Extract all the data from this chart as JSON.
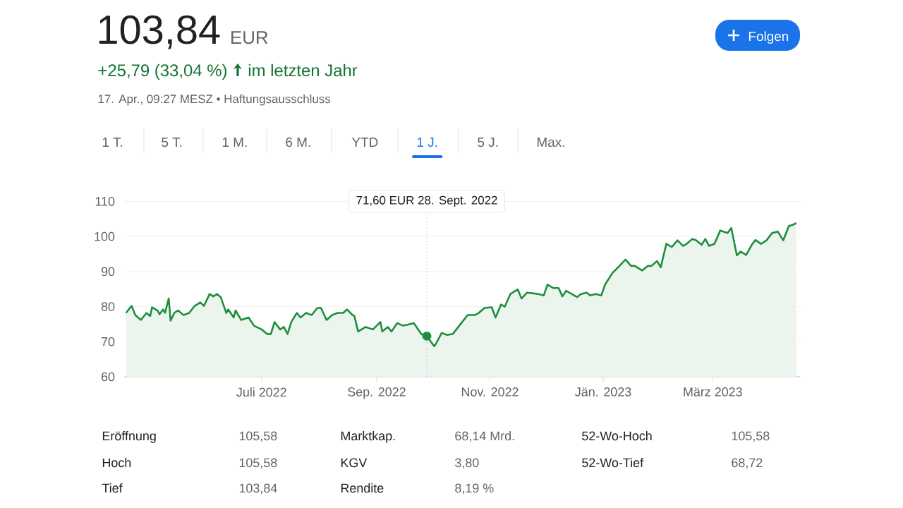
{
  "chart_data": {
    "type": "area",
    "title": "103,84",
    "x": [
      "2022-04-19",
      "2022-04-22",
      "2022-04-24",
      "2022-04-27",
      "2022-04-30",
      "2022-05-02",
      "2022-05-03",
      "2022-05-06",
      "2022-05-07",
      "2022-05-09",
      "2022-05-10",
      "2022-05-12",
      "2022-05-13",
      "2022-05-15",
      "2022-05-17",
      "2022-05-20",
      "2022-05-23",
      "2022-05-26",
      "2022-05-29",
      "2022-05-31",
      "2022-06-03",
      "2022-06-05",
      "2022-06-07",
      "2022-06-09",
      "2022-06-12",
      "2022-06-13",
      "2022-06-16",
      "2022-06-17",
      "2022-06-20",
      "2022-06-24",
      "2022-06-27",
      "2022-07-01",
      "2022-07-04",
      "2022-07-06",
      "2022-07-08",
      "2022-07-11",
      "2022-07-13",
      "2022-07-15",
      "2022-07-17",
      "2022-07-20",
      "2022-07-22",
      "2022-07-25",
      "2022-07-28",
      "2022-07-31",
      "2022-08-02",
      "2022-08-05",
      "2022-08-08",
      "2022-08-11",
      "2022-08-14",
      "2022-08-16",
      "2022-08-19",
      "2022-08-20",
      "2022-08-22",
      "2022-08-26",
      "2022-08-30",
      "2022-09-03",
      "2022-09-04",
      "2022-09-07",
      "2022-09-09",
      "2022-09-12",
      "2022-09-15",
      "2022-09-18",
      "2022-09-21",
      "2022-09-25",
      "2022-09-26",
      "2022-09-28",
      "2022-10-02",
      "2022-10-03",
      "2022-10-06",
      "2022-10-09",
      "2022-10-12",
      "2022-10-16",
      "2022-10-20",
      "2022-10-24",
      "2022-10-26",
      "2022-10-29",
      "2022-11-02",
      "2022-11-04",
      "2022-11-07",
      "2022-11-09",
      "2022-11-12",
      "2022-11-16",
      "2022-11-18",
      "2022-11-21",
      "2022-11-27",
      "2022-11-30",
      "2022-12-02",
      "2022-12-05",
      "2022-12-08",
      "2022-12-10",
      "2022-12-12",
      "2022-12-18",
      "2022-12-20",
      "2022-12-23",
      "2022-12-25",
      "2022-12-28",
      "2022-12-31",
      "2023-01-02",
      "2023-01-06",
      "2023-01-09",
      "2023-01-13",
      "2023-01-16",
      "2023-01-18",
      "2023-01-22",
      "2023-01-25",
      "2023-01-27",
      "2023-01-30",
      "2023-02-01",
      "2023-02-04",
      "2023-02-07",
      "2023-02-10",
      "2023-02-13",
      "2023-02-15",
      "2023-02-18",
      "2023-02-20",
      "2023-02-23",
      "2023-02-25",
      "2023-02-27",
      "2023-03-02",
      "2023-03-05",
      "2023-03-09",
      "2023-03-11",
      "2023-03-14",
      "2023-03-16",
      "2023-03-19",
      "2023-03-22",
      "2023-03-24",
      "2023-03-27",
      "2023-03-30",
      "2023-04-02",
      "2023-04-05",
      "2023-04-08",
      "2023-04-11",
      "2023-04-13",
      "2023-04-15"
    ],
    "series": [
      {
        "color": "#1e8e3e",
        "values": [
          78.2,
          80.2,
          77.6,
          76.2,
          78.2,
          77.3,
          79.8,
          78.9,
          77.8,
          79.2,
          78.2,
          82.3,
          76.0,
          78.2,
          78.9,
          77.6,
          78.2,
          80.2,
          81.2,
          80.2,
          83.6,
          82.9,
          83.6,
          82.7,
          78.2,
          79.2,
          76.9,
          78.9,
          76.2,
          76.9,
          74.5,
          73.5,
          72.2,
          72.2,
          75.6,
          73.5,
          74.2,
          72.2,
          75.6,
          78.2,
          76.9,
          78.2,
          77.6,
          79.6,
          79.6,
          76.2,
          77.6,
          78.2,
          78.2,
          79.2,
          77.6,
          77.3,
          72.9,
          74.2,
          73.5,
          75.6,
          72.9,
          74.2,
          72.9,
          75.3,
          74.6,
          74.9,
          75.3,
          72.2,
          71.9,
          71.6,
          68.7,
          69.5,
          72.5,
          71.9,
          72.2,
          74.9,
          77.6,
          77.6,
          78.2,
          79.6,
          79.8,
          76.9,
          80.6,
          80.0,
          83.6,
          84.9,
          82.3,
          84.0,
          83.6,
          83.2,
          86.3,
          85.3,
          85.3,
          82.9,
          84.5,
          82.7,
          83.6,
          84.0,
          83.2,
          83.6,
          83.2,
          86.3,
          89.6,
          91.2,
          93.4,
          91.6,
          91.6,
          90.3,
          91.6,
          91.6,
          93.0,
          91.2,
          97.9,
          97.0,
          98.9,
          97.3,
          97.9,
          99.3,
          98.9,
          97.6,
          99.3,
          97.3,
          97.9,
          101.7,
          101.0,
          102.4,
          94.6,
          95.7,
          94.7,
          97.6,
          99.0,
          97.9,
          98.9,
          101.0,
          101.4,
          98.9,
          103.0,
          103.3,
          103.8
        ]
      }
    ],
    "xlim": [
      "2022-04-18",
      "2023-04-17"
    ],
    "xticks": [
      {
        "value": "2022-07-01",
        "label": "Juli 2022"
      },
      {
        "value": "2022-09-01",
        "label": "Sep. 2022"
      },
      {
        "value": "2022-11-01",
        "label": "Nov. 2022"
      },
      {
        "value": "2023-01-01",
        "label": "Jän. 2023"
      },
      {
        "value": "2023-03-01",
        "label": "März 2023"
      }
    ],
    "ylim": [
      60,
      110
    ],
    "yticks": [
      60,
      70,
      80,
      90,
      100,
      110
    ],
    "grid": "y",
    "ref_lines": [
      {
        "axis": "x",
        "value": "2022-09-28",
        "line_style": "dotted",
        "color": "#80868b"
      }
    ],
    "annotations": [
      "EUR",
      "+25,79 (33,04 %)",
      "im letzten Jahr",
      "17. Apr., 09:27 MESZ • Haftungsausschluss",
      "Folgen",
      "1 T.",
      "5 T.",
      "1 M.",
      "6 M.",
      "YTD",
      "1 J.",
      "5 J.",
      "Max.",
      "Eröffnung",
      "105,58",
      "Marktkap.",
      "68,14 Mrd.",
      "52-Wo-Hoch",
      "105,58",
      "Hoch",
      "105,58",
      "KGV",
      "3,80",
      "52-Wo-Tief",
      "68,72",
      "Tief",
      "103,84",
      "Rendite",
      "8,19 %",
      "71,60 EUR  28. Sept. 2022"
    ]
  }
}
